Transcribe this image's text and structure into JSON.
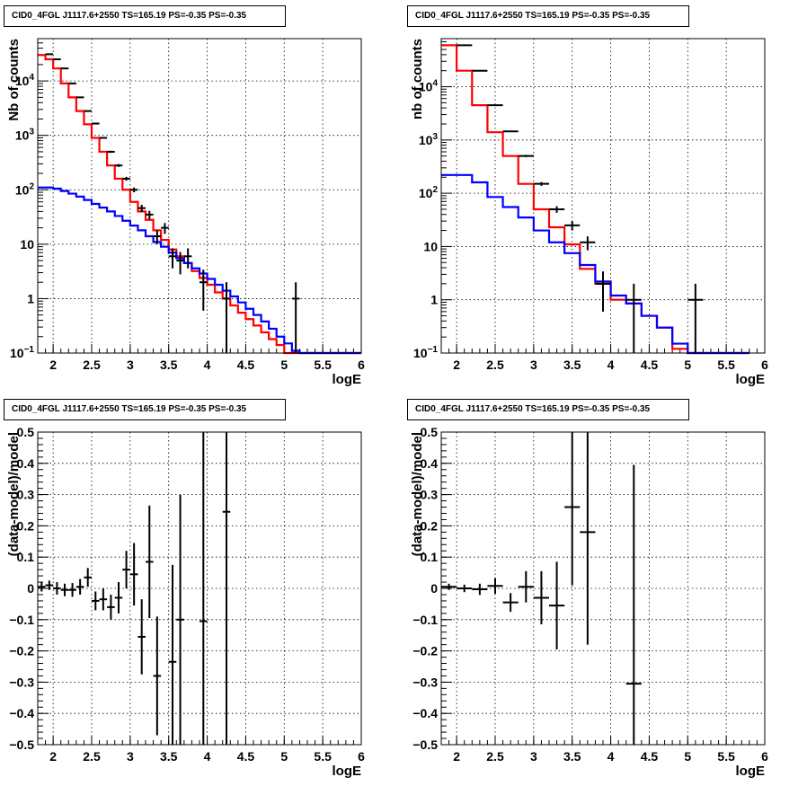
{
  "chart_data": [
    {
      "type": "line",
      "title": "CID0_4FGL J1117.6+2550 TS=165.19 PS=-0.35 PS=-0.35",
      "xlabel": "logE",
      "ylabel": "Nb of counts",
      "yscale": "log",
      "xlim": [
        1.8,
        6
      ],
      "ylim": [
        0.1,
        60000
      ],
      "grid": true,
      "x_ticks": [
        "2",
        "2.5",
        "3",
        "3.5",
        "4",
        "4.5",
        "5",
        "5.5",
        "6"
      ],
      "y_ticks": [
        "10⁻¹",
        "1",
        "10",
        "10²",
        "10³",
        "10⁴"
      ],
      "bin_edges": [
        1.8,
        1.9,
        2.0,
        2.1,
        2.2,
        2.3,
        2.4,
        2.5,
        2.6,
        2.7,
        2.8,
        2.9,
        3.0,
        3.1,
        3.2,
        3.3,
        3.4,
        3.5,
        3.6,
        3.7,
        3.8,
        3.9,
        4.0,
        4.1,
        4.2,
        4.3,
        4.4,
        4.5,
        4.6,
        4.7,
        4.8,
        4.9,
        5.0,
        5.1,
        5.2,
        5.3,
        5.4,
        5.5,
        5.6,
        5.7,
        5.8,
        5.9,
        6.0
      ],
      "series": [
        {
          "color": "#ff0000",
          "values": [
            30000,
            25000,
            17000,
            9000,
            5000,
            2800,
            1600,
            900,
            500,
            280,
            160,
            100,
            60,
            40,
            28,
            18,
            12,
            8,
            6,
            4.5,
            3.2,
            2.4,
            1.8,
            1.3,
            1.0,
            0.75,
            0.55,
            0.42,
            0.32,
            0.24,
            0.18,
            0.14,
            0.1,
            0.1,
            0.1,
            0.1,
            0.1,
            0.1,
            0.1,
            0.1,
            0.1,
            0.1
          ]
        },
        {
          "color": "#0000ff",
          "values": [
            110,
            110,
            105,
            95,
            85,
            75,
            65,
            55,
            47,
            40,
            33,
            27,
            22,
            18,
            14,
            11,
            9,
            7,
            5.5,
            4.5,
            3.6,
            2.9,
            2.3,
            1.8,
            1.4,
            1.1,
            0.85,
            0.65,
            0.5,
            0.38,
            0.28,
            0.2,
            0.15,
            0.11,
            0.1,
            0.1,
            0.1,
            0.1,
            0.1,
            0.1,
            0.1,
            0.1
          ]
        }
      ],
      "points": [
        {
          "x": 1.95,
          "y": 31000,
          "yerr": 175
        },
        {
          "x": 2.05,
          "y": 25000,
          "yerr": 160
        },
        {
          "x": 2.15,
          "y": 17000,
          "yerr": 130
        },
        {
          "x": 2.25,
          "y": 9000,
          "yerr": 95
        },
        {
          "x": 2.35,
          "y": 5000,
          "yerr": 70
        },
        {
          "x": 2.45,
          "y": 2800,
          "yerr": 53
        },
        {
          "x": 2.55,
          "y": 1650,
          "yerr": 40
        },
        {
          "x": 2.65,
          "y": 900,
          "yerr": 30
        },
        {
          "x": 2.75,
          "y": 500,
          "yerr": 22
        },
        {
          "x": 2.85,
          "y": 280,
          "yerr": 17
        },
        {
          "x": 2.95,
          "y": 160,
          "yerr": 13
        },
        {
          "x": 3.05,
          "y": 100,
          "yerr": 10
        },
        {
          "x": 3.15,
          "y": 46,
          "yerr": 7
        },
        {
          "x": 3.25,
          "y": 35,
          "yerr": 6
        },
        {
          "x": 3.35,
          "y": 14,
          "yerr": 4
        },
        {
          "x": 3.45,
          "y": 20,
          "yerr": 4.5
        },
        {
          "x": 3.55,
          "y": 6,
          "yerr": 2.4
        },
        {
          "x": 3.65,
          "y": 5,
          "yerr": 2.2
        },
        {
          "x": 3.75,
          "y": 6,
          "yerr": 2.4
        },
        {
          "x": 3.95,
          "y": 2,
          "yerr": 1.4
        },
        {
          "x": 4.25,
          "y": 1,
          "yerr": 1
        },
        {
          "x": 5.15,
          "y": 1,
          "yerr": 1
        }
      ]
    },
    {
      "type": "line",
      "title": "CID0_4FGL J1117.6+2550 TS=165.19 PS=-0.35 PS=-0.35",
      "xlabel": "logE",
      "ylabel": "nb of counts",
      "yscale": "log",
      "xlim": [
        1.8,
        6
      ],
      "ylim": [
        0.1,
        80000
      ],
      "grid": true,
      "x_ticks": [
        "2",
        "2.5",
        "3",
        "3.5",
        "4",
        "4.5",
        "5",
        "5.5",
        "6"
      ],
      "y_ticks": [
        "10⁻¹",
        "1",
        "10",
        "10²",
        "10³",
        "10⁴"
      ],
      "bin_edges": [
        1.8,
        2.0,
        2.2,
        2.4,
        2.6,
        2.8,
        3.0,
        3.2,
        3.4,
        3.6,
        3.8,
        4.0,
        4.2,
        4.4,
        4.6,
        4.8,
        5.0,
        5.2,
        5.4,
        5.6,
        5.8,
        6.0
      ],
      "series": [
        {
          "color": "#ff0000",
          "values": [
            60000,
            20000,
            4500,
            1400,
            500,
            150,
            50,
            23,
            11,
            3.8,
            2.0,
            1.0,
            0.85,
            0.5,
            0.3,
            0.12,
            0.1,
            0.1,
            0.1,
            0.1
          ]
        },
        {
          "color": "#0000ff",
          "values": [
            220,
            220,
            160,
            85,
            55,
            35,
            20,
            12,
            7.5,
            4.5,
            2.2,
            1.2,
            0.85,
            0.5,
            0.3,
            0.15,
            0.1,
            0.1,
            0.1,
            0.1
          ]
        }
      ],
      "points": [
        {
          "x": 2.1,
          "y": 60000,
          "yerr": 245
        },
        {
          "x": 2.3,
          "y": 20000,
          "yerr": 140
        },
        {
          "x": 2.5,
          "y": 4500,
          "yerr": 67
        },
        {
          "x": 2.7,
          "y": 1450,
          "yerr": 38
        },
        {
          "x": 2.9,
          "y": 500,
          "yerr": 22
        },
        {
          "x": 3.1,
          "y": 150,
          "yerr": 12
        },
        {
          "x": 3.3,
          "y": 50,
          "yerr": 7
        },
        {
          "x": 3.5,
          "y": 25,
          "yerr": 5
        },
        {
          "x": 3.7,
          "y": 12,
          "yerr": 3.5
        },
        {
          "x": 3.9,
          "y": 2,
          "yerr": 1.4
        },
        {
          "x": 4.3,
          "y": 1,
          "yerr": 1
        },
        {
          "x": 5.1,
          "y": 1,
          "yerr": 1
        }
      ]
    },
    {
      "type": "scatter",
      "title": "CID0_4FGL J1117.6+2550 TS=165.19 PS=-0.35 PS=-0.35",
      "xlabel": "logE",
      "ylabel": "(data-model)/model",
      "xlim": [
        1.8,
        6
      ],
      "ylim": [
        -0.5,
        0.5
      ],
      "grid": true,
      "x_ticks": [
        "2",
        "2.5",
        "3",
        "3.5",
        "4",
        "4.5",
        "5",
        "5.5",
        "6"
      ],
      "y_ticks": [
        "−0.5",
        "−0.4",
        "−0.3",
        "−0.2",
        "−0.1",
        "0",
        "0.1",
        "0.2",
        "0.3",
        "0.4",
        "0.5"
      ],
      "xerr": 0.05,
      "points": [
        {
          "x": 1.85,
          "y": 0.005,
          "yerr": 0.015
        },
        {
          "x": 1.95,
          "y": 0.01,
          "yerr": 0.015
        },
        {
          "x": 2.05,
          "y": 0.0,
          "yerr": 0.02
        },
        {
          "x": 2.15,
          "y": -0.005,
          "yerr": 0.02
        },
        {
          "x": 2.25,
          "y": -0.005,
          "yerr": 0.022
        },
        {
          "x": 2.35,
          "y": 0.005,
          "yerr": 0.025
        },
        {
          "x": 2.45,
          "y": 0.035,
          "yerr": 0.03
        },
        {
          "x": 2.55,
          "y": -0.04,
          "yerr": 0.03
        },
        {
          "x": 2.65,
          "y": -0.035,
          "yerr": 0.035
        },
        {
          "x": 2.75,
          "y": -0.06,
          "yerr": 0.04
        },
        {
          "x": 2.85,
          "y": -0.03,
          "yerr": 0.05
        },
        {
          "x": 2.95,
          "y": 0.06,
          "yerr": 0.06
        },
        {
          "x": 3.05,
          "y": 0.045,
          "yerr": 0.1
        },
        {
          "x": 3.15,
          "y": -0.155,
          "yerr": 0.12
        },
        {
          "x": 3.25,
          "y": 0.085,
          "yerr": 0.18
        },
        {
          "x": 3.35,
          "y": -0.28,
          "yerr": 0.19
        },
        {
          "x": 3.55,
          "y": -0.235,
          "yerr": 0.31
        },
        {
          "x": 3.65,
          "y": -0.1,
          "yerr": 0.4
        },
        {
          "x": 3.95,
          "y": -0.105,
          "yerr": 0.7
        },
        {
          "x": 4.25,
          "y": 0.245,
          "yerr": 1.0
        }
      ]
    },
    {
      "type": "scatter",
      "title": "CID0_4FGL J1117.6+2550 TS=165.19 PS=-0.35 PS=-0.35",
      "xlabel": "logE",
      "ylabel": "(data-model)/model",
      "xlim": [
        1.8,
        6
      ],
      "ylim": [
        -0.5,
        0.5
      ],
      "grid": true,
      "x_ticks": [
        "2",
        "2.5",
        "3",
        "3.5",
        "4",
        "4.5",
        "5",
        "5.5",
        "6"
      ],
      "y_ticks": [
        "−0.5",
        "−0.4",
        "−0.3",
        "−0.2",
        "−0.1",
        "0",
        "0.1",
        "0.2",
        "0.3",
        "0.4",
        "0.5"
      ],
      "xerr": 0.1,
      "points": [
        {
          "x": 1.9,
          "y": 0.005,
          "yerr": 0.01
        },
        {
          "x": 2.1,
          "y": 0.0,
          "yerr": 0.012
        },
        {
          "x": 2.3,
          "y": -0.003,
          "yerr": 0.018
        },
        {
          "x": 2.5,
          "y": 0.008,
          "yerr": 0.025
        },
        {
          "x": 2.7,
          "y": -0.045,
          "yerr": 0.03
        },
        {
          "x": 2.9,
          "y": 0.005,
          "yerr": 0.05
        },
        {
          "x": 3.1,
          "y": -0.03,
          "yerr": 0.085
        },
        {
          "x": 3.3,
          "y": -0.055,
          "yerr": 0.14
        },
        {
          "x": 3.5,
          "y": 0.26,
          "yerr": 0.25
        },
        {
          "x": 3.7,
          "y": 0.18,
          "yerr": 0.36
        },
        {
          "x": 4.3,
          "y": -0.305,
          "yerr": 0.7
        }
      ]
    }
  ]
}
